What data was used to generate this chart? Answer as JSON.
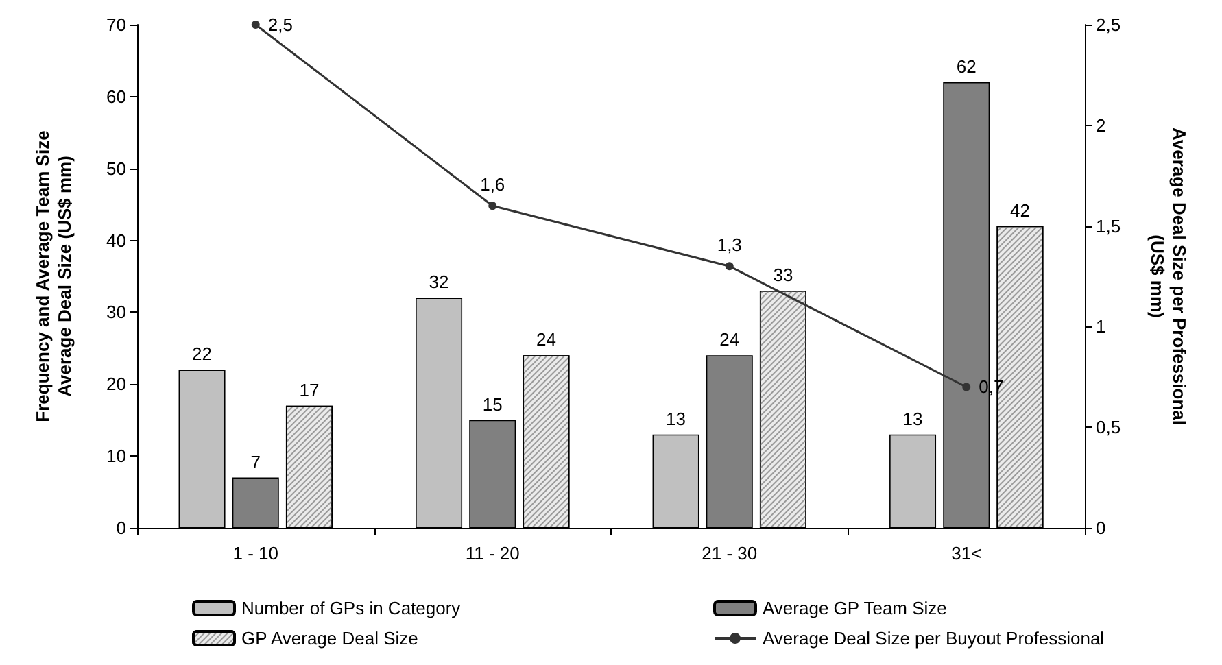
{
  "chart_data": {
    "type": "bar",
    "ylabel": "Frequency and Average Team Size\nAverage Deal Size (US$ mm)",
    "y2label": "Average Deal Size per Professional\n(US$ mm)",
    "categories": [
      "1 - 10",
      "11 - 20",
      "21 - 30",
      "31<"
    ],
    "series": [
      {
        "name": "Number of GPs in Category",
        "color": "#c0c0c0",
        "values": [
          22,
          32,
          13,
          13
        ]
      },
      {
        "name": "Average GP Team Size",
        "color": "#808080",
        "values": [
          7,
          15,
          24,
          62
        ]
      },
      {
        "name": "GP Average Deal Size",
        "color": "#ebebeb",
        "values": [
          17,
          24,
          33,
          42
        ]
      },
      {
        "name": "Average Deal Size per Buyout Professional",
        "type": "line",
        "axis": "y2",
        "color": "#333333",
        "marker": "circle",
        "line_style": "solid",
        "values": [
          2.5,
          1.6,
          1.3,
          0.7
        ],
        "value_labels": [
          "2,5",
          "1,6",
          "1,3",
          "0,7"
        ]
      }
    ],
    "data_labels": true,
    "ylim": [
      0,
      70
    ],
    "yticks": [
      0,
      10,
      20,
      30,
      40,
      50,
      60,
      70
    ],
    "y2lim": [
      0,
      2.5
    ],
    "y2ticks": [
      0,
      {
        "value": 0.5,
        "label": "0,5"
      },
      1,
      {
        "value": 1.5,
        "label": "1,5"
      },
      2,
      {
        "value": 2.5,
        "label": "2,5"
      }
    ],
    "grid": false,
    "legend": "bottom"
  }
}
